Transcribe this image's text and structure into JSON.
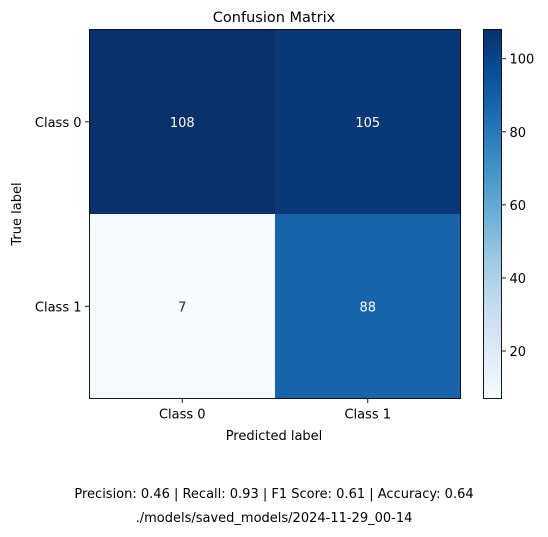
{
  "chart_data": {
    "type": "heatmap",
    "title": "Confusion Matrix",
    "xlabel": "Predicted label",
    "ylabel": "True label",
    "x_categories": [
      "Class 0",
      "Class 1"
    ],
    "y_categories": [
      "Class 0",
      "Class 1"
    ],
    "values": [
      [
        108,
        105
      ],
      [
        7,
        88
      ]
    ],
    "colormap": "Blues",
    "color_range": [
      7,
      108
    ],
    "colorbar_ticks": [
      20,
      40,
      60,
      80,
      100
    ],
    "grid": false
  },
  "caption": {
    "metrics": "Precision: 0.46 | Recall: 0.93 | F1 Score: 0.61 | Accuracy: 0.64",
    "path": "./models/saved_models/2024-11-29_00-14"
  },
  "colors": {
    "cell_light_text": "#ffffff",
    "cell_dark_text": "#08306b",
    "axis": "#000000"
  }
}
